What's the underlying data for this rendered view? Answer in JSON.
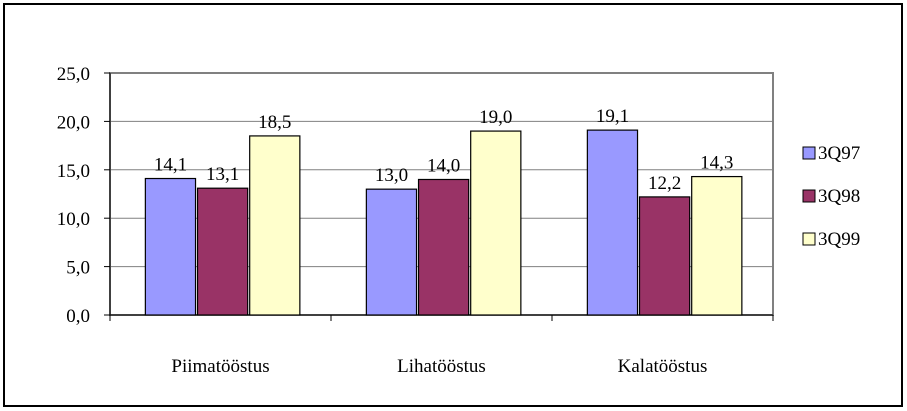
{
  "chart_data": {
    "type": "bar",
    "categories": [
      "Piimatööstus",
      "Lihatööstus",
      "Kalatööstus"
    ],
    "series": [
      {
        "name": "3Q97",
        "color": "#9999ff",
        "values": [
          14.1,
          13.0,
          19.1
        ],
        "value_labels": [
          "14,1",
          "13,0",
          "19,1"
        ]
      },
      {
        "name": "3Q98",
        "color": "#993366",
        "values": [
          13.1,
          14.0,
          12.2
        ],
        "value_labels": [
          "13,1",
          "14,0",
          "12,2"
        ]
      },
      {
        "name": "3Q99",
        "color": "#ffffcc",
        "values": [
          18.5,
          19.0,
          14.3
        ],
        "value_labels": [
          "18,5",
          "19,0",
          "14,3"
        ]
      }
    ],
    "ylim": [
      0,
      25
    ],
    "yticks": [
      {
        "value": 0,
        "label": "0,0"
      },
      {
        "value": 5,
        "label": "5,0"
      },
      {
        "value": 10,
        "label": "10,0"
      },
      {
        "value": 15,
        "label": "15,0"
      },
      {
        "value": 20,
        "label": "20,0"
      },
      {
        "value": 25,
        "label": "25,0"
      }
    ],
    "grid": true,
    "legend": "right"
  }
}
